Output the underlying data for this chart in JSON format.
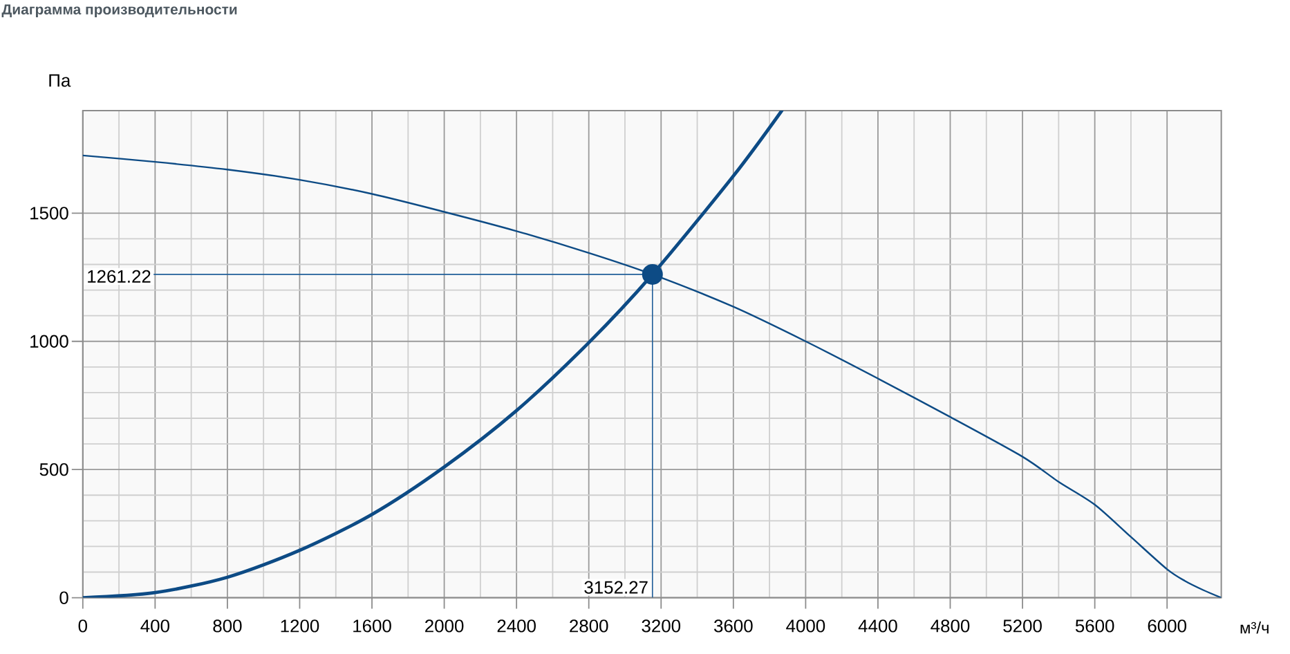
{
  "chart_data": {
    "type": "line",
    "title": "Диаграмма производительности",
    "xlabel": "м³/ч",
    "ylabel": "Па",
    "xlim": [
      0,
      6300
    ],
    "ylim": [
      0,
      1900
    ],
    "xticks": [
      0,
      400,
      800,
      1200,
      1600,
      2000,
      2400,
      2800,
      3200,
      3600,
      4000,
      4400,
      4800,
      5200,
      5600,
      6000
    ],
    "yticks": [
      0,
      500,
      1000,
      1500
    ],
    "grid": true,
    "series": [
      {
        "color": "#0d4b85",
        "x": [
          0,
          400,
          800,
          1200,
          1600,
          2000,
          2400,
          2800,
          3152.27,
          3600,
          4000,
          4400,
          4800,
          5200,
          5400,
          5600,
          5800,
          6000,
          6100,
          6200,
          6300
        ],
        "values": [
          1725,
          1700,
          1670,
          1630,
          1575,
          1505,
          1430,
          1345,
          1261.22,
          1135,
          1000,
          855,
          705,
          550,
          452,
          363,
          237,
          111,
          65,
          30,
          0
        ]
      },
      {
        "color": "#0d4b85",
        "x": [
          0,
          400,
          800,
          1200,
          1600,
          2000,
          2400,
          2800,
          3152.27,
          3600,
          3868
        ],
        "values": [
          0,
          20,
          80,
          185,
          325,
          510,
          730,
          995,
          1261.22,
          1645,
          1900
        ]
      },
      {
        "type": "scatter",
        "marker": "circle",
        "color": "#0d4b85",
        "x": [
          3152.27
        ],
        "values": [
          1261.22
        ]
      }
    ],
    "ref_lines": [
      {
        "axis": "y",
        "value": 1261.22,
        "label": "1261.22",
        "color": "#1f5e99"
      },
      {
        "axis": "x",
        "value": 3152.27,
        "label": "3152.27",
        "color": "#1f5e99"
      }
    ]
  }
}
